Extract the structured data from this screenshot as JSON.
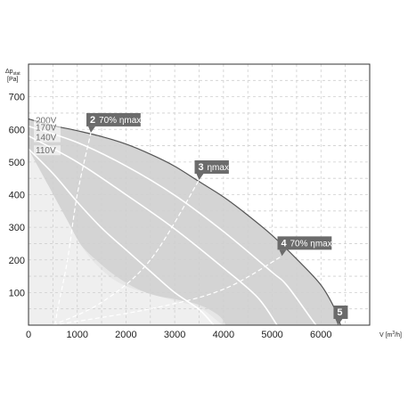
{
  "chart_data": {
    "type": "line",
    "xlabel_prefix": "V [m",
    "xlabel_sup": "3",
    "xlabel_suffix": "/h]",
    "ylabel_line1": "Δp",
    "ylabel_sub": "stat",
    "ylabel_line2": "[Pa]",
    "xlim": [
      0,
      7000
    ],
    "ylim": [
      0,
      800
    ],
    "x_ticks": [
      0,
      1000,
      2000,
      3000,
      4000,
      5000,
      6000
    ],
    "y_ticks": [
      100,
      200,
      300,
      400,
      500,
      600,
      700
    ],
    "grid": true,
    "colors": {
      "envelope_fill": "#d4d4d4",
      "mid_fill": "#e6e6e6",
      "low_fill": "#efefef",
      "curve_line": "#ffffff",
      "envelope_line": "#555555",
      "efficiency_line": "#ffffff",
      "callout_bg": "#6b6b6b",
      "grid": "#cfcfcf"
    },
    "series": [
      {
        "name": "200V",
        "values": [
          [
            0,
            632
          ],
          [
            500,
            612
          ],
          [
            1000,
            596
          ],
          [
            1500,
            578
          ],
          [
            2000,
            555
          ],
          [
            2500,
            524
          ],
          [
            3000,
            487
          ],
          [
            3500,
            440
          ],
          [
            4000,
            393
          ],
          [
            4500,
            337
          ],
          [
            5000,
            275
          ],
          [
            5500,
            203
          ],
          [
            6000,
            123
          ],
          [
            6300,
            45
          ],
          [
            6400,
            0
          ]
        ]
      },
      {
        "name": "170V",
        "values": [
          [
            0,
            610
          ],
          [
            1000,
            560
          ],
          [
            2000,
            488
          ],
          [
            3000,
            398
          ],
          [
            4000,
            287
          ],
          [
            5000,
            162
          ],
          [
            5300,
            122
          ],
          [
            5800,
            20
          ],
          [
            5900,
            0
          ]
        ]
      },
      {
        "name": "140V",
        "values": [
          [
            0,
            580
          ],
          [
            1000,
            500
          ],
          [
            2000,
            400
          ],
          [
            3000,
            295
          ],
          [
            4000,
            175
          ],
          [
            4700,
            85
          ],
          [
            5100,
            0
          ]
        ]
      },
      {
        "name": "110V",
        "values": [
          [
            0,
            540
          ],
          [
            500,
            465
          ],
          [
            1000,
            378
          ],
          [
            1500,
            298
          ],
          [
            2000,
            231
          ],
          [
            2500,
            165
          ],
          [
            3000,
            100
          ],
          [
            3500,
            48
          ],
          [
            3800,
            0
          ]
        ]
      },
      {
        "name": "low_region_edge",
        "values": [
          [
            0,
            540
          ],
          [
            400,
            430
          ],
          [
            800,
            320
          ],
          [
            1100,
            240
          ],
          [
            1500,
            170
          ],
          [
            2000,
            120
          ],
          [
            3000,
            75
          ],
          [
            3500,
            55
          ],
          [
            3900,
            10
          ],
          [
            4000,
            0
          ]
        ]
      },
      {
        "name": "mid_region_edge",
        "values": [
          [
            0,
            480
          ],
          [
            500,
            385
          ],
          [
            1000,
            260
          ],
          [
            1500,
            185
          ],
          [
            2000,
            130
          ],
          [
            2500,
            95
          ],
          [
            3000,
            80
          ],
          [
            3500,
            62
          ],
          [
            3900,
            30
          ],
          [
            4050,
            0
          ]
        ]
      }
    ],
    "efficiency_lines": [
      {
        "id": "2",
        "label": "70% ηmax",
        "values": [
          [
            550,
            0
          ],
          [
            600,
            50
          ],
          [
            800,
            200
          ],
          [
            1000,
            400
          ],
          [
            1280,
            590
          ]
        ]
      },
      {
        "id": "3",
        "label": "ηmax",
        "values": [
          [
            500,
            0
          ],
          [
            1500,
            70
          ],
          [
            2500,
            200
          ],
          [
            3500,
            445
          ]
        ]
      },
      {
        "id": "4",
        "label": "70% ηmax",
        "values": [
          [
            500,
            0
          ],
          [
            2500,
            50
          ],
          [
            4000,
            110
          ],
          [
            5200,
            212
          ]
        ]
      },
      {
        "id": "5",
        "label": "",
        "values": []
      }
    ],
    "callouts": [
      {
        "id": "2",
        "label": "70% ηmax",
        "x": 1280,
        "y": 590
      },
      {
        "id": "3",
        "label": "ηmax",
        "x": 3500,
        "y": 445
      },
      {
        "id": "4",
        "label": "70% ηmax",
        "x": 5200,
        "y": 212
      },
      {
        "id": "5",
        "label": "",
        "x": 6350,
        "y": 0
      }
    ]
  }
}
